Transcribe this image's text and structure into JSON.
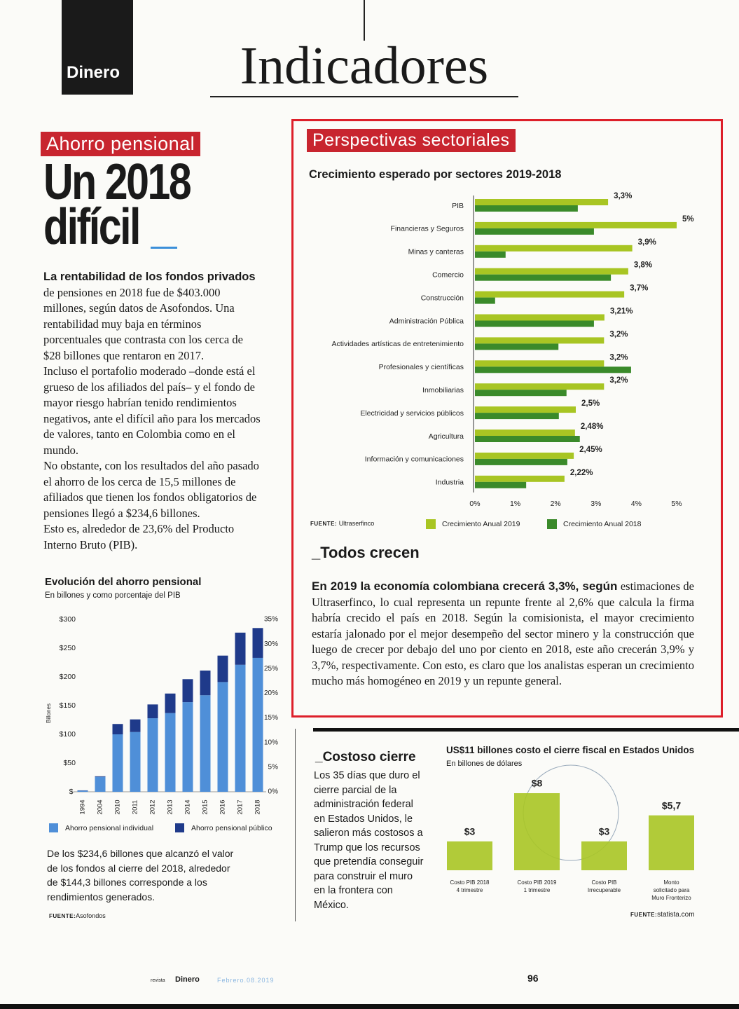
{
  "header": {
    "brand": "Dinero",
    "title": "Indicadores"
  },
  "left_article": {
    "section": "Ahorro pensional",
    "headline": [
      "Un 2018",
      "difícil"
    ],
    "lead": "La rentabilidad de los fondos privados",
    "paragraphs": [
      "de pensiones en 2018 fue de $403.000 millones, según datos de Asofondos. Una rentabilidad muy baja en términos porcentuales que contrasta con los cerca de $28 billones que rentaron en 2017.",
      "Incluso el portafolio moderado –donde está el grueso de los afiliados del país– y el fondo de mayor riesgo habrían tenido rendimientos negativos, ante el difícil año para los mercados de valores, tanto en Colombia como en el mundo.",
      "No obstante, con los resultados del año pasado el ahorro de los cerca de 15,5 millones de afiliados que tienen los fondos obligatorios de pensiones llegó a $234,6 billones.",
      "Esto es, alrededor de 23,6% del Producto Interno Bruto (PIB)."
    ],
    "caption": "De los $234,6 billones que alcanzó el valor de los fondos al cierre del 2018, alrededor de $144,3 billones corresponde a los rendimientos generados."
  },
  "sector_article": {
    "section": "Perspectivas sectoriales",
    "heading": "_Todos crecen",
    "lead": "En 2019 la economía colombiana crecerá 3,3%, según",
    "text": "estimaciones de Ultraserfinco, lo cual representa un repunte frente al 2,6% que calcula la firma habría crecido el país en 2018. Según la comisionista, el mayor crecimiento estaría jalonado por el mejor desempeño del sector minero y la construcción que luego de crecer por debajo del uno por ciento en 2018, este año crecerán 3,9% y 3,7%, respectivamente. Con esto, es claro que los analistas esperan un crecimiento mucho más homogéneo en 2019 y un repunte general."
  },
  "shutdown_article": {
    "heading": "_Costoso cierre",
    "text": "Los 35 días que duro el cierre parcial de la administración federal en Estados Unidos, le salieron más costosos a Trump que los recursos que pretendía conseguir para construir el muro en la frontera con México."
  },
  "footer": {
    "revista": "revista",
    "brand": "Dinero",
    "date": "Febrero.08.2019",
    "page": "96"
  },
  "chart_data": [
    {
      "type": "bar",
      "stacked": true,
      "title": "Evolución del ahorro pensional",
      "subtitle": "En billones y como porcentaje del PIB",
      "y_label": "Billones",
      "categories": [
        "1994",
        "2004",
        "2010",
        "2011",
        "2012",
        "2013",
        "2014",
        "2015",
        "2016",
        "2017",
        "2018"
      ],
      "series": [
        {
          "name": "Ahorro pensional individual",
          "color": "#4f8fd8",
          "values": [
            2,
            26,
            100,
            104,
            128,
            137,
            156,
            168,
            191,
            221,
            233
          ]
        },
        {
          "name": "Ahorro pensional público",
          "color": "#1f3a8a",
          "values": [
            0.5,
            1,
            18,
            22,
            24,
            34,
            40,
            43,
            46,
            56,
            52
          ]
        }
      ],
      "ylim": [
        0,
        300
      ],
      "yticks": [
        {
          "value": 0,
          "label": "$-"
        },
        {
          "value": 50,
          "label": "$50"
        },
        {
          "value": 100,
          "label": "$100"
        },
        {
          "value": 150,
          "label": "$150"
        },
        {
          "value": 200,
          "label": "$200"
        },
        {
          "value": 250,
          "label": "$250"
        },
        {
          "value": 300,
          "label": "$300"
        }
      ],
      "y2lim": [
        0,
        35
      ],
      "y2ticks": [
        {
          "value": 0,
          "label": "0%"
        },
        {
          "value": 5,
          "label": "5%"
        },
        {
          "value": 10,
          "label": "10%"
        },
        {
          "value": 15,
          "label": "15%"
        },
        {
          "value": 20,
          "label": "20%"
        },
        {
          "value": 25,
          "label": "25%"
        },
        {
          "value": 30,
          "label": "30%"
        },
        {
          "value": 35,
          "label": "35%"
        }
      ],
      "source_label": "FUENTE:",
      "source": "Asofondos"
    },
    {
      "type": "bar",
      "orientation": "horizontal",
      "title": "Crecimiento esperado por sectores 2019-2018",
      "categories": [
        "PIB",
        "Financieras y Seguros",
        "Minas y canteras",
        "Comercio",
        "Construcción",
        "Administración Pública",
        "Actividades artísticas de entretenimiento",
        "Profesionales y científicas",
        "Inmobiliarias",
        "Electricidad y servicios públicos",
        "Agricultura",
        "Información y comunicaciones",
        "Industria"
      ],
      "series": [
        {
          "name": "Crecimiento Anual 2019",
          "color": "#a8c523",
          "values": [
            3.3,
            5,
            3.9,
            3.8,
            3.7,
            3.21,
            3.2,
            3.2,
            3.2,
            2.5,
            2.48,
            2.45,
            2.22
          ],
          "value_labels": [
            "3,3%",
            "5%",
            "3,9%",
            "3,8%",
            "3,7%",
            "3,21%",
            "3,2%",
            "3,2%",
            "3,2%",
            "2,5%",
            "2,48%",
            "2,45%",
            "2,22%"
          ]
        },
        {
          "name": "Crecimiento Anual 2018",
          "color": "#3a8a2a",
          "values": [
            2.55,
            2.95,
            0.76,
            3.37,
            0.5,
            2.95,
            2.07,
            3.87,
            2.27,
            2.08,
            2.6,
            2.29,
            1.27
          ]
        }
      ],
      "xlim": [
        0,
        5
      ],
      "xticks": [
        {
          "value": 0,
          "label": "0%"
        },
        {
          "value": 1,
          "label": "1%"
        },
        {
          "value": 2,
          "label": "2%"
        },
        {
          "value": 3,
          "label": "3%"
        },
        {
          "value": 4,
          "label": "4%"
        },
        {
          "value": 5,
          "label": "5%"
        }
      ],
      "source_label": "FUENTE:",
      "source": "Ultraserfinco"
    },
    {
      "type": "bar",
      "title": "US$11 billones costo el cierre fiscal en Estados Unidos",
      "subtitle": "En billones de dólares",
      "categories": [
        [
          "Costo PIB 2018",
          "4 trimestre"
        ],
        [
          "Costo PIB 2019",
          "1 trimestre"
        ],
        [
          "Costo PIB",
          "Irrecuperable"
        ],
        [
          "Monto",
          "solicitado para",
          "Muro Fronterizo"
        ]
      ],
      "values": [
        3,
        8,
        3,
        5.7
      ],
      "value_labels": [
        "$3",
        "$8",
        "$3",
        "$5,7"
      ],
      "color": "#a8c523",
      "source_label": "FUENTE:",
      "source": "statista.com"
    }
  ]
}
